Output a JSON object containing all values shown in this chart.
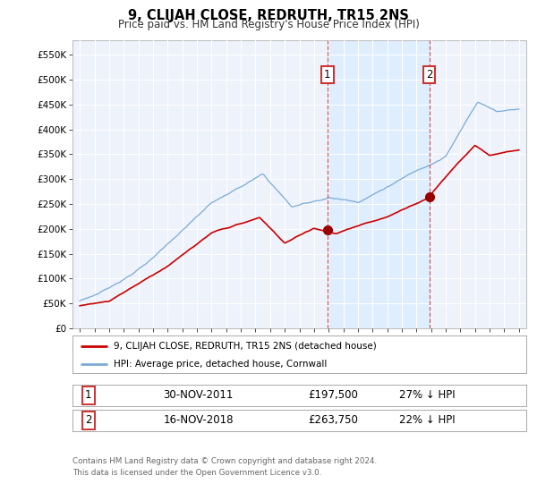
{
  "title": "9, CLIJAH CLOSE, REDRUTH, TR15 2NS",
  "subtitle": "Price paid vs. HM Land Registry's House Price Index (HPI)",
  "ylabel_ticks": [
    "£0",
    "£50K",
    "£100K",
    "£150K",
    "£200K",
    "£250K",
    "£300K",
    "£350K",
    "£400K",
    "£450K",
    "£500K",
    "£550K"
  ],
  "ytick_values": [
    0,
    50000,
    100000,
    150000,
    200000,
    250000,
    300000,
    350000,
    400000,
    450000,
    500000,
    550000
  ],
  "ylim": [
    0,
    580000
  ],
  "xlim_start": 1994.5,
  "xlim_end": 2025.5,
  "hpi_color": "#7aaad4",
  "price_color": "#cc0000",
  "shade_color": "#ddeeff",
  "annotation1_date": 2011.92,
  "annotation2_date": 2018.88,
  "annotation1_price": 197500,
  "annotation2_price": 263750,
  "legend_label1": "9, CLIJAH CLOSE, REDRUTH, TR15 2NS (detached house)",
  "legend_label2": "HPI: Average price, detached house, Cornwall",
  "table_row1": [
    "1",
    "30-NOV-2011",
    "£197,500",
    "27% ↓ HPI"
  ],
  "table_row2": [
    "2",
    "16-NOV-2018",
    "£263,750",
    "22% ↓ HPI"
  ],
  "footer": "Contains HM Land Registry data © Crown copyright and database right 2024.\nThis data is licensed under the Open Government Licence v3.0.",
  "background_color": "#eef3fb"
}
